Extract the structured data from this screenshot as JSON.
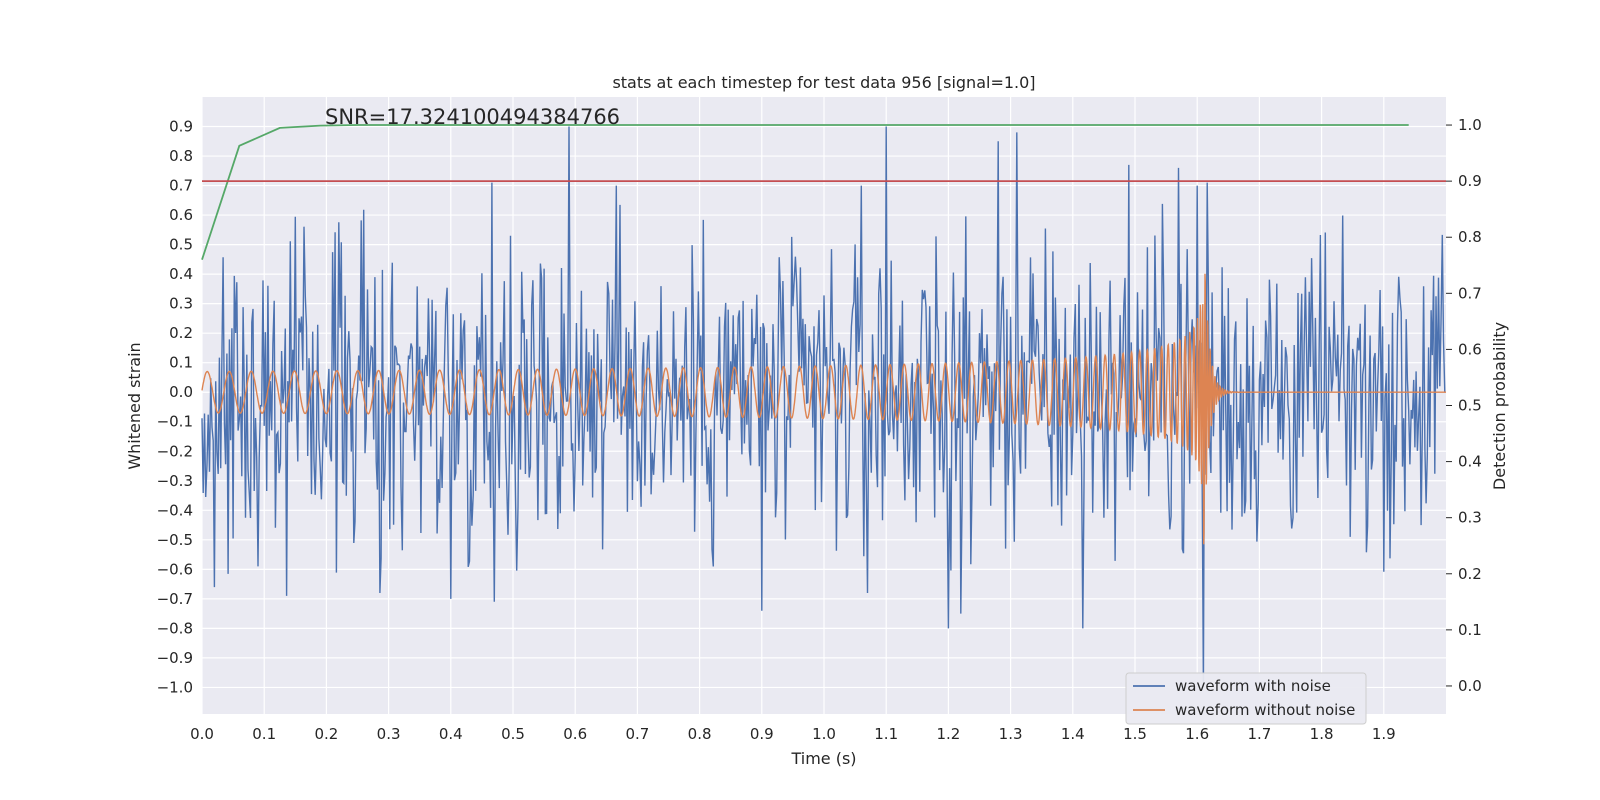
{
  "chart_data": {
    "type": "line",
    "title": "stats at each timestep for test data 956 [signal=1.0]",
    "xlabel": "Time (s)",
    "ylabel": "Whitened strain",
    "y2label": "Detection probability",
    "annotation": "SNR=17.324100494384766",
    "xlim": [
      0.0,
      2.0
    ],
    "ylim": [
      -1.09,
      1.0
    ],
    "y2lim": [
      -0.05,
      1.05
    ],
    "xticks": [
      "0.0",
      "0.1",
      "0.2",
      "0.3",
      "0.4",
      "0.5",
      "0.6",
      "0.7",
      "0.8",
      "0.9",
      "1.0",
      "1.1",
      "1.2",
      "1.3",
      "1.4",
      "1.5",
      "1.6",
      "1.7",
      "1.8",
      "1.9"
    ],
    "yticks": [
      "0.9",
      "0.8",
      "0.7",
      "0.6",
      "0.5",
      "0.4",
      "0.3",
      "0.2",
      "0.1",
      "0.0",
      "−0.1",
      "−0.2",
      "−0.3",
      "−0.4",
      "−0.5",
      "−0.6",
      "−0.7",
      "−0.8",
      "−0.9",
      "−1.0"
    ],
    "y2ticks": [
      "1.0",
      "0.9",
      "0.8",
      "0.7",
      "0.6",
      "0.5",
      "0.4",
      "0.3",
      "0.2",
      "0.1",
      "0.0"
    ],
    "grid": true,
    "legend_position": "lower-right",
    "series": [
      {
        "name": "waveform with noise",
        "axis": "left",
        "color": "#4c72b0",
        "description": "whitened strain noise, amplitude roughly -1.0 to 0.9 across 0-2 s",
        "noise_spread": 0.26,
        "spikes": [
          [
            0.02,
            -0.66
          ],
          [
            0.09,
            -0.59
          ],
          [
            0.135,
            -0.69
          ],
          [
            0.285,
            -0.68
          ],
          [
            0.4,
            -0.7
          ],
          [
            0.465,
            0.71
          ],
          [
            0.47,
            -0.71
          ],
          [
            0.59,
            0.9
          ],
          [
            0.665,
            0.7
          ],
          [
            0.9,
            -0.74
          ],
          [
            1.06,
            0.7
          ],
          [
            1.07,
            -0.68
          ],
          [
            1.1,
            0.9
          ],
          [
            1.2,
            -0.8
          ],
          [
            1.22,
            -0.75
          ],
          [
            1.28,
            0.85
          ],
          [
            1.31,
            0.88
          ],
          [
            1.415,
            -0.8
          ],
          [
            1.49,
            0.77
          ],
          [
            1.57,
            0.76
          ],
          [
            1.6,
            0.7
          ],
          [
            1.61,
            -1.0
          ],
          [
            1.615,
            0.71
          ]
        ]
      },
      {
        "name": "waveform without noise",
        "axis": "left",
        "color": "#dd8452",
        "description": "chirp signal, amplitude ~0.07 rising to ~0.6 at merger near 1.61 s, then ringdown to 0",
        "merger_time": 1.61,
        "peak_strain": 0.59,
        "min_strain": -0.57
      },
      {
        "name": "",
        "axis": "right",
        "color": "#55a868",
        "x": [
          0.0,
          0.06,
          0.125,
          0.19,
          0.25,
          1.94
        ],
        "y": [
          0.76,
          0.963,
          0.995,
          0.999,
          1.0,
          1.0
        ]
      },
      {
        "name": "",
        "axis": "right",
        "color": "#c44e52",
        "type": "hline",
        "y": 0.9
      }
    ]
  }
}
